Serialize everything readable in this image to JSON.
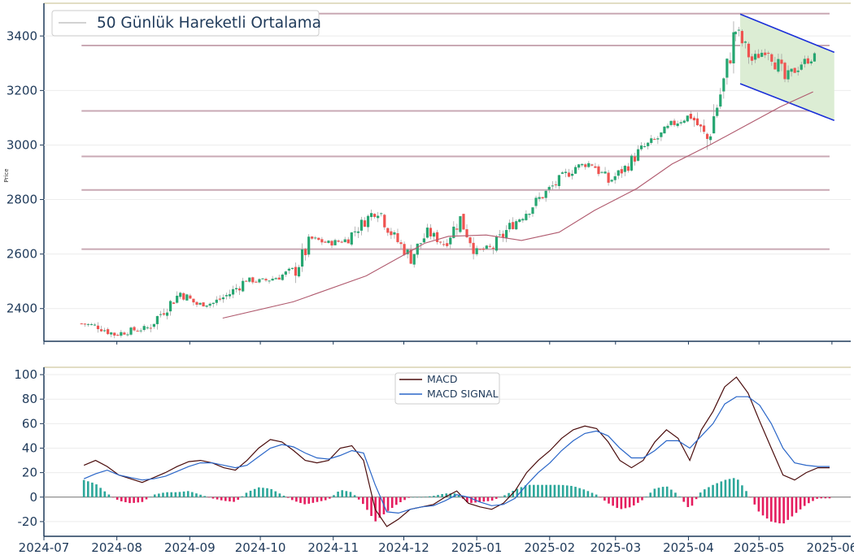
{
  "colors": {
    "up": "#26a671",
    "down": "#ef5350",
    "ma": "#b05a6e",
    "hline": "#c9a9b4",
    "channel": "#1a2fd8",
    "channel_fill": "#dcedd4",
    "macd": "#4a0c0c",
    "signal": "#2a66c8",
    "hist_pos": "#2ca79a",
    "hist_neg": "#e51c5e",
    "axis": "#1f3a5a",
    "topline": "#d8d2b0"
  },
  "chart_data": [
    {
      "type": "candlestick",
      "ylabel": "Price",
      "legend": [
        "50 Günlük Hareketli Ortalama"
      ],
      "ylim": [
        2280,
        3520
      ],
      "yticks": [
        2400,
        2600,
        2800,
        3000,
        3200,
        3400
      ],
      "grid": true,
      "horizontal_levels": [
        3482,
        3365,
        3125,
        2958,
        2835,
        2618
      ],
      "date_range": [
        "2024-07-17",
        "2025-06-02"
      ],
      "ohlc_series": [
        {
          "date": "2024-07-17",
          "close": 2345
        },
        {
          "date": "2024-07-24",
          "close": 2335
        },
        {
          "date": "2024-07-31",
          "close": 2305
        },
        {
          "date": "2024-08-07",
          "close": 2320
        },
        {
          "date": "2024-08-14",
          "close": 2328
        },
        {
          "date": "2024-08-21",
          "close": 2395
        },
        {
          "date": "2024-08-28",
          "close": 2458
        },
        {
          "date": "2024-09-04",
          "close": 2415
        },
        {
          "date": "2024-09-11",
          "close": 2420
        },
        {
          "date": "2024-09-18",
          "close": 2455
        },
        {
          "date": "2024-09-25",
          "close": 2505
        },
        {
          "date": "2024-10-02",
          "close": 2500
        },
        {
          "date": "2024-10-09",
          "close": 2518
        },
        {
          "date": "2024-10-16",
          "close": 2545
        },
        {
          "date": "2024-10-23",
          "close": 2655
        },
        {
          "date": "2024-10-30",
          "close": 2640
        },
        {
          "date": "2024-11-06",
          "close": 2650
        },
        {
          "date": "2024-11-13",
          "close": 2710
        },
        {
          "date": "2024-11-20",
          "close": 2770
        },
        {
          "date": "2024-11-27",
          "close": 2660
        },
        {
          "date": "2024-12-04",
          "close": 2588
        },
        {
          "date": "2024-12-11",
          "close": 2680
        },
        {
          "date": "2024-12-18",
          "close": 2640
        },
        {
          "date": "2024-12-25",
          "close": 2728
        },
        {
          "date": "2025-01-01",
          "close": 2610
        },
        {
          "date": "2025-01-08",
          "close": 2625
        },
        {
          "date": "2025-01-15",
          "close": 2700
        },
        {
          "date": "2025-01-22",
          "close": 2755
        },
        {
          "date": "2025-01-29",
          "close": 2815
        },
        {
          "date": "2025-02-05",
          "close": 2870
        },
        {
          "date": "2025-02-12",
          "close": 2920
        },
        {
          "date": "2025-02-19",
          "close": 2935
        },
        {
          "date": "2025-02-26",
          "close": 2865
        },
        {
          "date": "2025-03-05",
          "close": 2915
        },
        {
          "date": "2025-03-12",
          "close": 2985
        },
        {
          "date": "2025-03-19",
          "close": 3025
        },
        {
          "date": "2025-03-26",
          "close": 3080
        },
        {
          "date": "2025-04-02",
          "close": 3110
        },
        {
          "date": "2025-04-09",
          "close": 3020
        },
        {
          "date": "2025-04-16",
          "close": 3230
        },
        {
          "date": "2025-04-21",
          "close": 3420
        },
        {
          "date": "2025-04-28",
          "close": 3310
        },
        {
          "date": "2025-05-05",
          "close": 3360
        },
        {
          "date": "2025-05-12",
          "close": 3240
        },
        {
          "date": "2025-05-19",
          "close": 3300
        },
        {
          "date": "2025-05-26",
          "close": 3330
        }
      ],
      "ma50": [
        {
          "date": "2024-09-15",
          "value": 2365
        },
        {
          "date": "2024-10-15",
          "value": 2425
        },
        {
          "date": "2024-11-15",
          "value": 2520
        },
        {
          "date": "2024-12-10",
          "value": 2640
        },
        {
          "date": "2024-12-20",
          "value": 2665
        },
        {
          "date": "2025-01-05",
          "value": 2670
        },
        {
          "date": "2025-01-20",
          "value": 2650
        },
        {
          "date": "2025-02-05",
          "value": 2680
        },
        {
          "date": "2025-02-20",
          "value": 2760
        },
        {
          "date": "2025-03-10",
          "value": 2840
        },
        {
          "date": "2025-03-25",
          "value": 2930
        },
        {
          "date": "2025-04-10",
          "value": 3000
        },
        {
          "date": "2025-04-25",
          "value": 3070
        },
        {
          "date": "2025-05-10",
          "value": 3140
        },
        {
          "date": "2025-05-24",
          "value": 3195
        }
      ],
      "channel": {
        "upper": [
          [
            "2025-04-23",
            3480
          ],
          [
            "2025-06-02",
            3340
          ]
        ],
        "lower": [
          [
            "2025-04-23",
            3225
          ],
          [
            "2025-06-02",
            3090
          ]
        ]
      }
    },
    {
      "type": "line+bar",
      "legend": [
        "MACD",
        "MACD SIGNAL"
      ],
      "ylim": [
        -32,
        106
      ],
      "yticks": [
        -20,
        0,
        20,
        40,
        60,
        80,
        100
      ],
      "xticks": [
        "2024-07",
        "2024-08",
        "2024-09",
        "2024-10",
        "2024-11",
        "2024-12",
        "2025-01",
        "2025-02",
        "2025-03",
        "2025-04",
        "2025-05",
        "2025-06"
      ],
      "macd": [
        26,
        30,
        25,
        18,
        15,
        12,
        16,
        20,
        25,
        29,
        30,
        28,
        24,
        22,
        30,
        40,
        47,
        45,
        38,
        30,
        28,
        30,
        40,
        42,
        30,
        -10,
        -24,
        -18,
        -10,
        -8,
        -6,
        0,
        5,
        -5,
        -8,
        -10,
        -5,
        5,
        20,
        30,
        38,
        48,
        55,
        58,
        56,
        45,
        30,
        24,
        30,
        45,
        55,
        48,
        30,
        55,
        70,
        90,
        98,
        85,
        62,
        40,
        18,
        14,
        20,
        24,
        24
      ],
      "signal": [
        15,
        19,
        22,
        18,
        16,
        14,
        15,
        17,
        21,
        25,
        28,
        28,
        26,
        24,
        26,
        33,
        40,
        43,
        41,
        36,
        32,
        31,
        34,
        38,
        36,
        10,
        -12,
        -13,
        -10,
        -8,
        -7,
        -3,
        2,
        0,
        -4,
        -7,
        -6,
        -1,
        10,
        20,
        28,
        38,
        46,
        52,
        54,
        50,
        40,
        32,
        32,
        38,
        46,
        46,
        40,
        50,
        60,
        76,
        82,
        82,
        75,
        60,
        40,
        28,
        26,
        25,
        25
      ],
      "histogram": [
        14,
        11,
        3,
        -3,
        -5,
        -4,
        2,
        4,
        4,
        5,
        2,
        -1,
        -3,
        -4,
        4,
        8,
        7,
        2,
        -3,
        -6,
        -4,
        -2,
        6,
        4,
        -6,
        -20,
        -12,
        -5,
        0,
        0,
        1,
        3,
        3,
        -5,
        -4,
        -3,
        1,
        6,
        10,
        10,
        10,
        10,
        9,
        6,
        2,
        -5,
        -10,
        -8,
        -2,
        7,
        9,
        2,
        -10,
        5,
        10,
        14,
        16,
        3,
        -13,
        -20,
        -22,
        -14,
        -6,
        -1,
        -1
      ]
    }
  ]
}
